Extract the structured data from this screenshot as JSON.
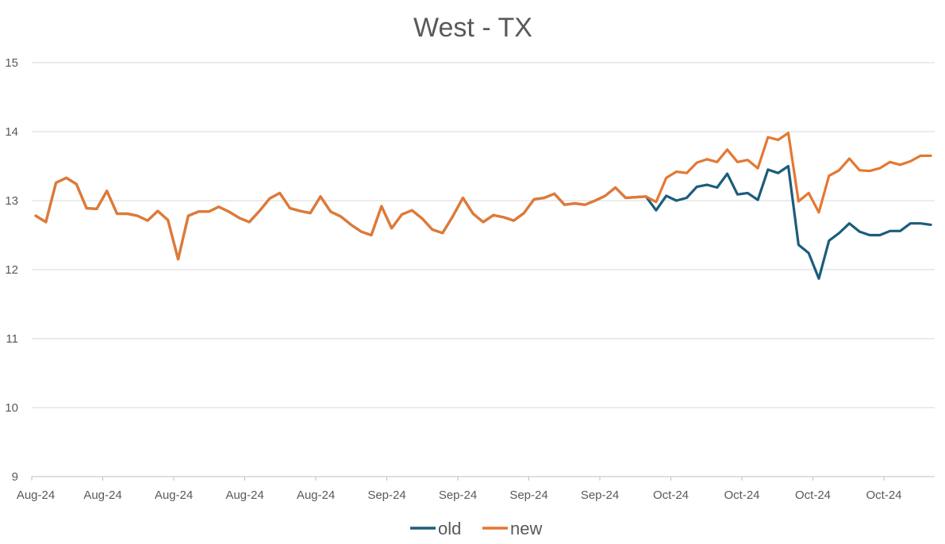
{
  "chart_data": {
    "type": "line",
    "title": "West - TX",
    "xlabel": "",
    "ylabel": "",
    "ylim": [
      9,
      15
    ],
    "yticks": [
      9,
      10,
      11,
      12,
      13,
      14,
      15
    ],
    "xtick_labels": [
      "Aug-24",
      "Aug-24",
      "Aug-24",
      "Aug-24",
      "Aug-24",
      "Sep-24",
      "Sep-24",
      "Sep-24",
      "Sep-24",
      "Oct-24",
      "Oct-24",
      "Oct-24",
      "Oct-24"
    ],
    "grid": true,
    "legend_position": "bottom",
    "series": [
      {
        "name": "old",
        "color": "#1B5D7B",
        "values": [
          12.78,
          12.69,
          13.26,
          13.33,
          13.24,
          12.89,
          12.88,
          13.14,
          12.81,
          12.81,
          12.78,
          12.71,
          12.85,
          12.72,
          12.15,
          12.78,
          12.84,
          12.84,
          12.91,
          12.84,
          12.75,
          12.69,
          12.85,
          13.03,
          13.11,
          12.89,
          12.85,
          12.82,
          13.06,
          12.84,
          12.77,
          12.65,
          12.55,
          12.5,
          12.92,
          12.6,
          12.8,
          12.86,
          12.74,
          12.58,
          12.53,
          12.77,
          13.04,
          12.81,
          12.69,
          12.79,
          12.76,
          12.71,
          12.82,
          13.02,
          13.04,
          13.1,
          12.94,
          12.96,
          12.94,
          13.0,
          13.07,
          13.19,
          13.04,
          13.05,
          13.06,
          12.86,
          13.07,
          13.0,
          13.04,
          13.2,
          13.23,
          13.19,
          13.39,
          13.09,
          13.11,
          13.01,
          13.45,
          13.4,
          13.5,
          12.36,
          12.24,
          11.87,
          12.42,
          12.53,
          12.67,
          12.55,
          12.5,
          12.5,
          12.56,
          12.56,
          12.67,
          12.67,
          12.65
        ]
      },
      {
        "name": "new",
        "color": "#E47832",
        "values": [
          12.78,
          12.69,
          13.26,
          13.33,
          13.24,
          12.89,
          12.88,
          13.14,
          12.81,
          12.81,
          12.78,
          12.71,
          12.85,
          12.72,
          12.15,
          12.78,
          12.84,
          12.84,
          12.91,
          12.84,
          12.75,
          12.69,
          12.85,
          13.03,
          13.11,
          12.89,
          12.85,
          12.82,
          13.06,
          12.84,
          12.77,
          12.65,
          12.55,
          12.5,
          12.92,
          12.6,
          12.8,
          12.86,
          12.74,
          12.58,
          12.53,
          12.77,
          13.04,
          12.81,
          12.69,
          12.79,
          12.76,
          12.71,
          12.82,
          13.02,
          13.04,
          13.1,
          12.94,
          12.96,
          12.94,
          13.0,
          13.07,
          13.19,
          13.04,
          13.05,
          13.06,
          12.98,
          13.33,
          13.42,
          13.4,
          13.55,
          13.6,
          13.56,
          13.74,
          13.56,
          13.59,
          13.47,
          13.92,
          13.88,
          13.98,
          12.99,
          13.11,
          12.83,
          13.36,
          13.44,
          13.61,
          13.44,
          13.43,
          13.47,
          13.56,
          13.52,
          13.57,
          13.65,
          13.65
        ]
      }
    ]
  }
}
